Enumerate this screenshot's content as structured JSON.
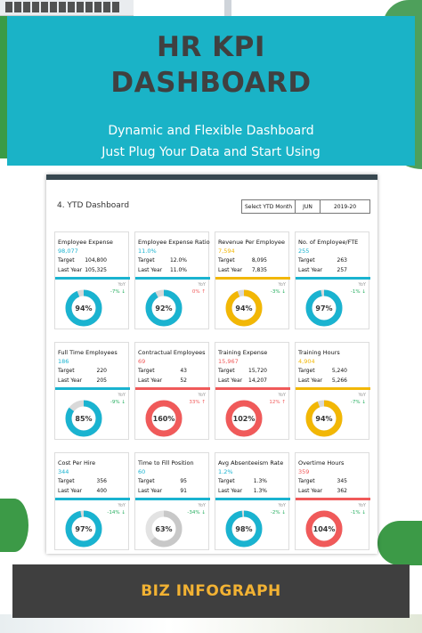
{
  "banner": {
    "title_line1": "HR KPI",
    "title_line2": "DASHBOARD",
    "subtitle_line1": "Dynamic and Flexible Dashboard",
    "subtitle_line2": "Just Plug Your Data and Start Using"
  },
  "dashboard": {
    "title": "4. YTD Dashboard",
    "selector": {
      "label": "Select YTD Month",
      "month": "JUN",
      "year": "2019-20"
    },
    "target_label": "Target",
    "last_year_label": "Last Year",
    "yoy_label": "YoY",
    "colors": {
      "cyan": "#1ab3d0",
      "red": "#f05a5a",
      "yellow": "#f2b705",
      "grey": "#d0d0d0"
    },
    "kpis": [
      {
        "name": "Employee Expense",
        "value": "98,077",
        "target": "104,800",
        "last_year": "105,325",
        "change": "-7% ↓",
        "pct": "94%",
        "fraction": 0.94,
        "color": "cyan"
      },
      {
        "name": "Employee Expense Ratio",
        "value": "11.0%",
        "target": "12.0%",
        "last_year": "11.0%",
        "change": "0% ↑",
        "pct": "92%",
        "fraction": 0.92,
        "color": "cyan"
      },
      {
        "name": "Revenue Per Employee",
        "value": "7,594",
        "target": "8,095",
        "last_year": "7,835",
        "change": "-3% ↓",
        "pct": "94%",
        "fraction": 0.94,
        "color": "yellow"
      },
      {
        "name": "No. of Employee/FTE",
        "value": "255",
        "target": "263",
        "last_year": "257",
        "change": "-1% ↓",
        "pct": "97%",
        "fraction": 0.97,
        "color": "cyan"
      },
      {
        "name": "Full Time Employees",
        "value": "186",
        "target": "220",
        "last_year": "205",
        "change": "-9% ↓",
        "pct": "85%",
        "fraction": 0.85,
        "color": "cyan"
      },
      {
        "name": "Contractual Employees",
        "value": "69",
        "target": "43",
        "last_year": "52",
        "change": "33% ↑",
        "pct": "160%",
        "fraction": 1.0,
        "color": "red"
      },
      {
        "name": "Training Expense",
        "value": "15,967",
        "target": "15,720",
        "last_year": "14,207",
        "change": "12% ↑",
        "pct": "102%",
        "fraction": 1.0,
        "color": "red"
      },
      {
        "name": "Training Hours",
        "value": "4,904",
        "target": "5,240",
        "last_year": "5,266",
        "change": "-7% ↓",
        "pct": "94%",
        "fraction": 0.94,
        "color": "yellow"
      },
      {
        "name": "Cost Per Hire",
        "value": "344",
        "target": "356",
        "last_year": "400",
        "change": "-14% ↓",
        "pct": "97%",
        "fraction": 0.97,
        "color": "cyan"
      },
      {
        "name": "Time to Fill Position",
        "value": "60",
        "target": "95",
        "last_year": "91",
        "change": "-34% ↓",
        "pct": "63%",
        "fraction": 0.63,
        "color": "grey"
      },
      {
        "name": "Avg Absenteeism Rate",
        "value": "1.2%",
        "target": "1.3%",
        "last_year": "1.3%",
        "change": "-2% ↓",
        "pct": "98%",
        "fraction": 0.98,
        "color": "cyan"
      },
      {
        "name": "Overtime Hours",
        "value": "359",
        "target": "345",
        "last_year": "362",
        "change": "-1% ↓",
        "pct": "104%",
        "fraction": 1.0,
        "color": "red"
      }
    ]
  },
  "footer": {
    "brand": "BIZ INFOGRAPH"
  }
}
